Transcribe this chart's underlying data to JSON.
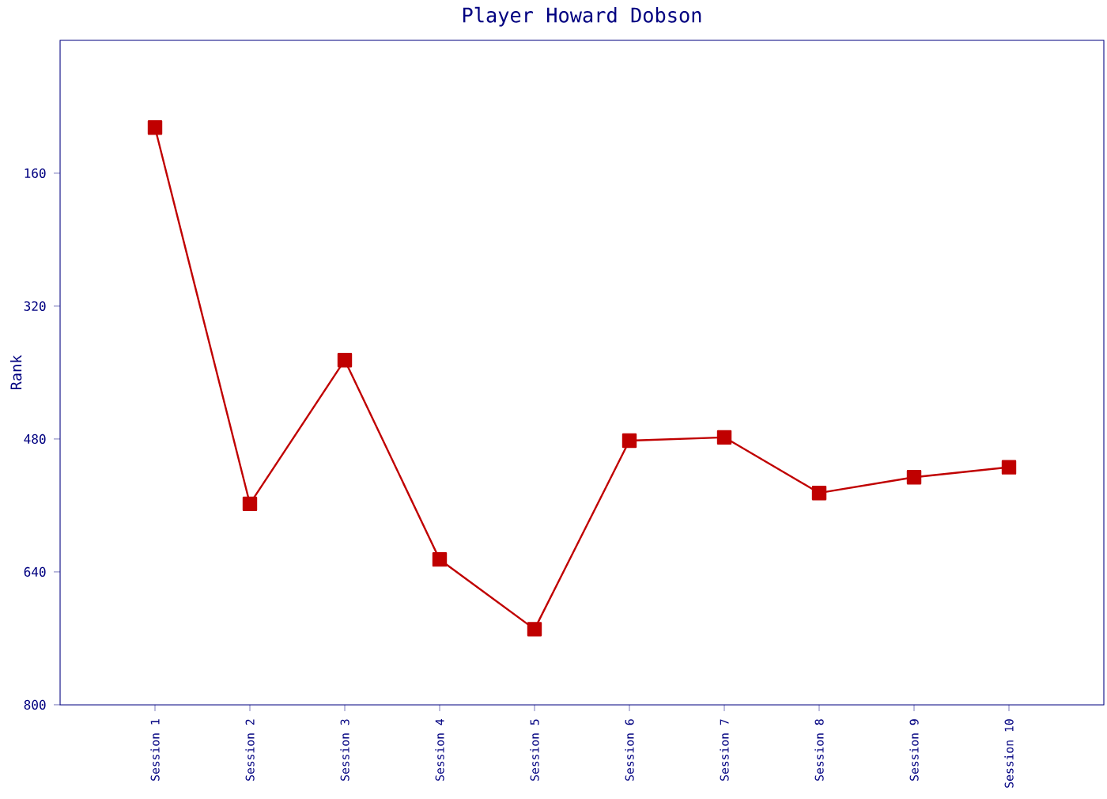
{
  "chart_data": {
    "type": "line",
    "title": "Player Howard Dobson",
    "ylabel": "Rank",
    "categories": [
      "Session 1",
      "Session 2",
      "Session 3",
      "Session 4",
      "Session 5",
      "Session 6",
      "Session 7",
      "Session 8",
      "Session 9",
      "Session 10"
    ],
    "series": [
      {
        "color": "#c00000",
        "values": [
          105,
          558,
          385,
          625,
          709,
          482,
          478,
          545,
          526,
          514
        ]
      }
    ],
    "ylim": [
      800,
      0
    ],
    "yticks": [
      160,
      320,
      480,
      640,
      800
    ],
    "marker": "square",
    "line_style": "solid",
    "grid": false
  }
}
